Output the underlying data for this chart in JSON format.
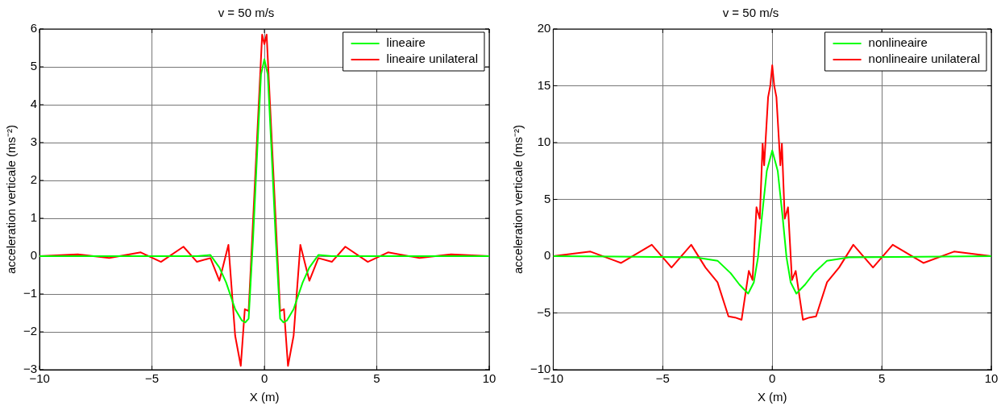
{
  "chart_data": [
    {
      "type": "line",
      "title": "v = 50 m/s",
      "xlabel": "X (m)",
      "ylabel": "acceleration verticale (ms⁻²)",
      "xlim": [
        -10,
        10
      ],
      "xticks": [
        -10,
        -5,
        0,
        5,
        10
      ],
      "ylim": [
        -3,
        6
      ],
      "yticks": [
        -3,
        -2,
        -1,
        0,
        1,
        2,
        3,
        4,
        5,
        6
      ],
      "grid": true,
      "legend": "top right",
      "series": [
        {
          "name": "lineaire",
          "color": "#00ff00",
          "x": [
            -10,
            -3,
            -2.4,
            -2.0,
            -1.7,
            -1.3,
            -1.0,
            -0.85,
            -0.7,
            -0.5,
            -0.3,
            -0.15,
            0,
            0.15,
            0.3,
            0.5,
            0.7,
            0.85,
            1.0,
            1.3,
            1.7,
            2.0,
            2.4,
            3,
            10
          ],
          "values": [
            0,
            0,
            0.03,
            -0.3,
            -0.7,
            -1.4,
            -1.7,
            -1.75,
            -1.65,
            0.5,
            3.0,
            4.8,
            5.2,
            4.8,
            3.0,
            0.5,
            -1.65,
            -1.75,
            -1.7,
            -1.4,
            -0.7,
            -0.3,
            0.03,
            0,
            0
          ]
        },
        {
          "name": "lineaire unilateral",
          "color": "#ff0000",
          "x": [
            -10,
            -8.3,
            -6.9,
            -5.5,
            -4.6,
            -3.6,
            -3.0,
            -2.4,
            -2.0,
            -1.6,
            -1.3,
            -1.05,
            -0.87,
            -0.7,
            -0.1,
            0,
            0.1,
            0.7,
            0.87,
            1.05,
            1.3,
            1.6,
            2.0,
            2.4,
            3.0,
            3.6,
            4.6,
            5.5,
            6.9,
            8.3,
            10
          ],
          "values": [
            0,
            0.05,
            -0.05,
            0.1,
            -0.15,
            0.25,
            -0.15,
            -0.05,
            -0.65,
            0.3,
            -2.1,
            -2.9,
            -1.4,
            -1.45,
            5.85,
            5.6,
            5.85,
            -1.45,
            -1.4,
            -2.9,
            -2.1,
            0.3,
            -0.65,
            -0.05,
            -0.15,
            0.25,
            -0.15,
            0.1,
            -0.05,
            0.05,
            0
          ]
        }
      ]
    },
    {
      "type": "line",
      "title": "v = 50 m/s",
      "xlabel": "X (m)",
      "ylabel": "acceleration verticale (ms⁻²)",
      "xlim": [
        -10,
        10
      ],
      "xticks": [
        -10,
        -5,
        0,
        5,
        10
      ],
      "ylim": [
        -10,
        20
      ],
      "yticks": [
        -10,
        -5,
        0,
        5,
        10,
        15,
        20
      ],
      "grid": true,
      "legend": "top right",
      "series": [
        {
          "name": "nonlineaire",
          "color": "#00ff00",
          "x": [
            -10,
            -3.5,
            -2.5,
            -1.9,
            -1.5,
            -1.1,
            -0.84,
            -0.65,
            -0.47,
            -0.25,
            0,
            0.25,
            0.47,
            0.65,
            0.84,
            1.1,
            1.5,
            1.9,
            2.5,
            3.5,
            10
          ],
          "values": [
            0,
            -0.1,
            -0.4,
            -1.5,
            -2.5,
            -3.3,
            -2.3,
            -0.1,
            3.5,
            7.5,
            9.3,
            7.5,
            3.5,
            -0.1,
            -2.3,
            -3.3,
            -2.5,
            -1.5,
            -0.4,
            -0.1,
            0
          ]
        },
        {
          "name": "nonlineaire unilateral",
          "color": "#ff0000",
          "x": [
            -10,
            -8.3,
            -6.9,
            -5.5,
            -4.6,
            -3.7,
            -3.05,
            -2.5,
            -2.0,
            -1.7,
            -1.4,
            -1.07,
            -0.9,
            -0.72,
            -0.57,
            -0.44,
            -0.37,
            -0.19,
            -0.09,
            0,
            0.09,
            0.19,
            0.37,
            0.44,
            0.57,
            0.72,
            0.9,
            1.07,
            1.4,
            1.7,
            2.0,
            2.5,
            3.05,
            3.7,
            4.6,
            5.5,
            6.9,
            8.3,
            10
          ],
          "values": [
            0,
            0.4,
            -0.6,
            1.0,
            -1.0,
            1.0,
            -1.0,
            -2.3,
            -5.3,
            -5.4,
            -5.6,
            -1.3,
            -2.1,
            4.3,
            3.3,
            9.9,
            8.0,
            14.0,
            15.0,
            16.8,
            15.0,
            14.0,
            8.0,
            9.9,
            3.3,
            4.3,
            -2.1,
            -1.3,
            -5.6,
            -5.4,
            -5.3,
            -2.3,
            -1.0,
            1.0,
            -1.0,
            1.0,
            -0.6,
            0.4,
            0
          ]
        }
      ]
    }
  ]
}
